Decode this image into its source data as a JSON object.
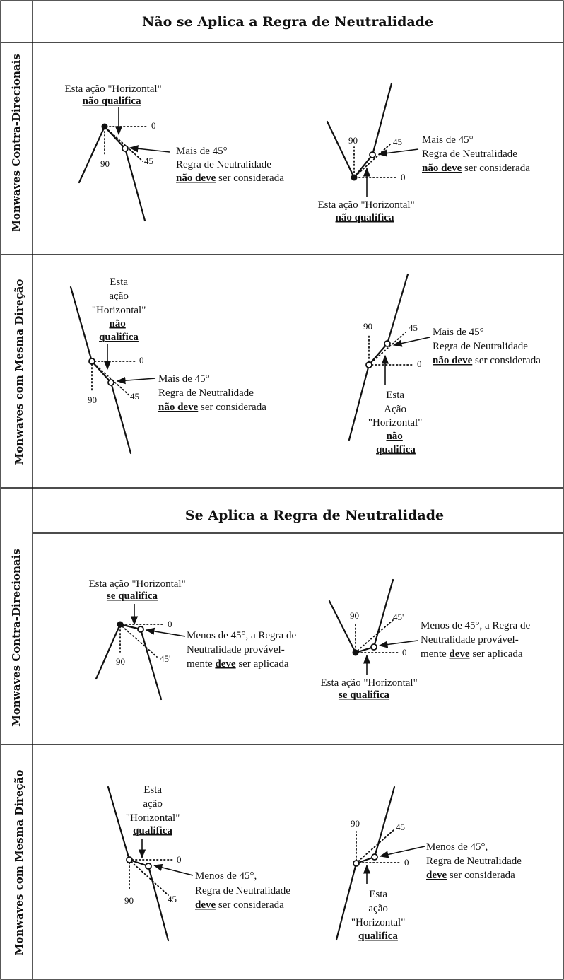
{
  "headers": {
    "not_apply": "Não se Aplica a Regra de Neutralidade",
    "apply": "Se Aplica a Regra de Neutralidade"
  },
  "side_labels": {
    "counter": "Monwaves Contra-Direcionais",
    "same": "Monwaves com Mesma Direção"
  },
  "angles": {
    "zero": "0",
    "ninety": "90",
    "fortyfive": "45",
    "fortyfive_alt": "45'"
  },
  "not_qualify": {
    "line1": "Esta ação \"Horizontal\"",
    "line2": "não qualifica",
    "split_1": "Esta",
    "split_2": "ação",
    "split_2_cap": "Ação",
    "split_3": "\"Horizontal\"",
    "split_4": "não",
    "split_5": "qualifica"
  },
  "more_45": {
    "line1": "Mais de 45°",
    "line2": "Regra de Neutralidade",
    "line3_em": "não deve",
    "line3_rest": " ser considerada"
  },
  "qualify": {
    "line1": "Esta ação \"Horizontal\"",
    "line2_em": "se qualifica",
    "split_1": "Esta",
    "split_2": "ação",
    "split_3": "\"Horizontal\"",
    "split_4": "qualifica"
  },
  "less_45_a": {
    "line1": "Menos de 45°, a Regra de",
    "line2": "Neutralidade provável-",
    "line3_pre": "mente ",
    "line3_em": "deve",
    "line3_rest": " ser aplicada"
  },
  "less_45_b": {
    "line1": "Menos de 45°, a Regra de",
    "line2": "Neutralidade provável-",
    "line3_pre": "mente ",
    "line3_em": "deve",
    "line3_rest": " ser aplicada"
  },
  "less_45_c": {
    "line1": "Menos de 45°,",
    "line2": "Regra de Neutralidade",
    "line3_em": "deve",
    "line3_rest": "  ser considerada"
  }
}
